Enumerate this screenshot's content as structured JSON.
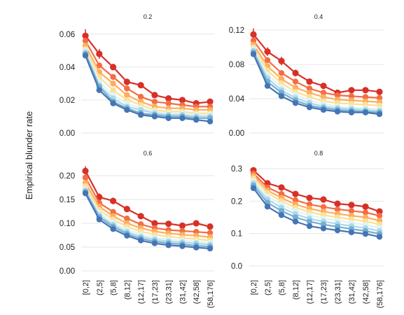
{
  "figure": {
    "ylabel": "Empirical blunder rate"
  },
  "chart_data": [
    {
      "type": "line",
      "title": "0.2",
      "xlabel": "",
      "ylabel": "Empirical blunder rate",
      "categories": [
        "[0,2]",
        "(2,5]",
        "(5,8]",
        "(8,12]",
        "(12,17]",
        "(17,23]",
        "(23,31]",
        "(31,42]",
        "(42,58]",
        "(58,176]"
      ],
      "ylim": [
        0,
        0.065
      ],
      "yticks": [
        0.0,
        0.02,
        0.04,
        0.06
      ],
      "ytick_labels": [
        "0.00",
        "0.02",
        "0.04",
        "0.06"
      ],
      "grid": true,
      "show_x_labels": false,
      "series": [
        {
          "color": "#d73027",
          "values": [
            0.059,
            0.048,
            0.04,
            0.031,
            0.029,
            0.023,
            0.021,
            0.02,
            0.018,
            0.019
          ],
          "errors": [
            0.004,
            0.003,
            0.002,
            0.002,
            0.001,
            0.001,
            0.001,
            0.001,
            0.001,
            0.001
          ]
        },
        {
          "color": "#f46d43",
          "values": [
            0.056,
            0.041,
            0.034,
            0.027,
            0.022,
            0.019,
            0.018,
            0.017,
            0.016,
            0.016
          ]
        },
        {
          "color": "#fdae61",
          "values": [
            0.053,
            0.037,
            0.03,
            0.023,
            0.019,
            0.016,
            0.015,
            0.015,
            0.014,
            0.014
          ]
        },
        {
          "color": "#fee090",
          "values": [
            0.051,
            0.034,
            0.026,
            0.02,
            0.017,
            0.014,
            0.013,
            0.013,
            0.012,
            0.012
          ]
        },
        {
          "color": "#e0f3f8",
          "values": [
            0.05,
            0.031,
            0.023,
            0.018,
            0.015,
            0.013,
            0.012,
            0.012,
            0.011,
            0.011
          ]
        },
        {
          "color": "#abd9e9",
          "values": [
            0.049,
            0.029,
            0.021,
            0.016,
            0.014,
            0.012,
            0.011,
            0.011,
            0.01,
            0.01
          ]
        },
        {
          "color": "#74add1",
          "values": [
            0.048,
            0.028,
            0.019,
            0.015,
            0.012,
            0.011,
            0.01,
            0.01,
            0.009,
            0.009
          ]
        },
        {
          "color": "#4575b4",
          "values": [
            0.047,
            0.026,
            0.018,
            0.014,
            0.011,
            0.01,
            0.009,
            0.009,
            0.008,
            0.007
          ]
        }
      ]
    },
    {
      "type": "line",
      "title": "0.4",
      "xlabel": "",
      "ylabel": "",
      "categories": [
        "[0,2]",
        "(2,5]",
        "(5,8]",
        "(8,12]",
        "(12,17]",
        "(17,23]",
        "(23,31]",
        "(31,42]",
        "(42,58]",
        "(58,176]"
      ],
      "ylim": [
        0,
        0.125
      ],
      "yticks": [
        0.0,
        0.04,
        0.08,
        0.12
      ],
      "ytick_labels": [
        "0.00",
        "0.04",
        "0.08",
        "0.12"
      ],
      "grid": true,
      "show_x_labels": false,
      "series": [
        {
          "color": "#d73027",
          "values": [
            0.115,
            0.095,
            0.084,
            0.07,
            0.06,
            0.055,
            0.047,
            0.05,
            0.05,
            0.048
          ],
          "errors": [
            0.007,
            0.005,
            0.005,
            0.004,
            0.003,
            0.003,
            0.003,
            0.002,
            0.002,
            0.002
          ]
        },
        {
          "color": "#f46d43",
          "values": [
            0.108,
            0.085,
            0.07,
            0.06,
            0.052,
            0.047,
            0.044,
            0.043,
            0.042,
            0.041
          ]
        },
        {
          "color": "#fdae61",
          "values": [
            0.103,
            0.078,
            0.063,
            0.053,
            0.047,
            0.042,
            0.039,
            0.038,
            0.037,
            0.036
          ]
        },
        {
          "color": "#fee090",
          "values": [
            0.1,
            0.073,
            0.058,
            0.048,
            0.042,
            0.037,
            0.035,
            0.034,
            0.033,
            0.032
          ]
        },
        {
          "color": "#e0f3f8",
          "values": [
            0.098,
            0.068,
            0.054,
            0.045,
            0.038,
            0.034,
            0.031,
            0.03,
            0.029,
            0.028
          ]
        },
        {
          "color": "#abd9e9",
          "values": [
            0.096,
            0.064,
            0.05,
            0.041,
            0.035,
            0.031,
            0.029,
            0.028,
            0.027,
            0.026
          ]
        },
        {
          "color": "#74add1",
          "values": [
            0.094,
            0.06,
            0.047,
            0.038,
            0.032,
            0.029,
            0.027,
            0.026,
            0.025,
            0.024
          ]
        },
        {
          "color": "#4575b4",
          "values": [
            0.092,
            0.055,
            0.043,
            0.035,
            0.03,
            0.027,
            0.025,
            0.024,
            0.024,
            0.022
          ]
        }
      ]
    },
    {
      "type": "line",
      "title": "0.6",
      "xlabel": "",
      "ylabel": "",
      "categories": [
        "[0,2]",
        "(2,5]",
        "(5,8]",
        "(8,12]",
        "(12,17]",
        "(17,23]",
        "(23,31]",
        "(31,42]",
        "(42,58]",
        "(58,176]"
      ],
      "ylim": [
        0,
        0.225
      ],
      "yticks": [
        0.0,
        0.05,
        0.1,
        0.15,
        0.2
      ],
      "ytick_labels": [
        "0.00",
        "0.05",
        "0.10",
        "0.15",
        "0.20"
      ],
      "grid": true,
      "show_x_labels": true,
      "series": [
        {
          "color": "#d73027",
          "values": [
            0.21,
            0.155,
            0.147,
            0.13,
            0.115,
            0.1,
            0.099,
            0.095,
            0.1,
            0.093
          ],
          "errors": [
            0.01,
            0.008,
            0.007,
            0.006,
            0.005,
            0.004,
            0.004,
            0.004,
            0.004,
            0.004
          ]
        },
        {
          "color": "#f46d43",
          "values": [
            0.196,
            0.143,
            0.124,
            0.11,
            0.098,
            0.09,
            0.086,
            0.084,
            0.082,
            0.08
          ]
        },
        {
          "color": "#fdae61",
          "values": [
            0.185,
            0.135,
            0.115,
            0.1,
            0.09,
            0.083,
            0.079,
            0.076,
            0.074,
            0.071
          ]
        },
        {
          "color": "#fee090",
          "values": [
            0.178,
            0.128,
            0.108,
            0.093,
            0.083,
            0.076,
            0.072,
            0.069,
            0.067,
            0.064
          ]
        },
        {
          "color": "#e0f3f8",
          "values": [
            0.172,
            0.122,
            0.102,
            0.087,
            0.077,
            0.07,
            0.066,
            0.064,
            0.062,
            0.059
          ]
        },
        {
          "color": "#abd9e9",
          "values": [
            0.169,
            0.117,
            0.097,
            0.082,
            0.072,
            0.066,
            0.062,
            0.06,
            0.058,
            0.055
          ]
        },
        {
          "color": "#74add1",
          "values": [
            0.166,
            0.113,
            0.093,
            0.078,
            0.068,
            0.062,
            0.058,
            0.056,
            0.053,
            0.051
          ]
        },
        {
          "color": "#4575b4",
          "values": [
            0.163,
            0.108,
            0.088,
            0.074,
            0.064,
            0.058,
            0.054,
            0.052,
            0.049,
            0.047
          ]
        }
      ]
    },
    {
      "type": "line",
      "title": "0.8",
      "xlabel": "",
      "ylabel": "",
      "categories": [
        "[0,2]",
        "(2,5]",
        "(5,8]",
        "(8,12]",
        "(12,17]",
        "(17,23]",
        "(23,31]",
        "(31,42]",
        "(42,58]",
        "(58,176]"
      ],
      "ylim": [
        -0.015,
        0.315
      ],
      "yticks": [
        0.0,
        0.1,
        0.2,
        0.3
      ],
      "ytick_labels": [
        "0.0",
        "0.1",
        "0.2",
        "0.3"
      ],
      "grid": true,
      "show_x_labels": true,
      "series": [
        {
          "color": "#d73027",
          "values": [
            0.295,
            0.255,
            0.242,
            0.222,
            0.21,
            0.205,
            0.192,
            0.188,
            0.183,
            0.168
          ],
          "errors": [
            0.006,
            0.005,
            0.005,
            0.004,
            0.004,
            0.004,
            0.004,
            0.004,
            0.004,
            0.004
          ]
        },
        {
          "color": "#f46d43",
          "values": [
            0.285,
            0.242,
            0.222,
            0.203,
            0.19,
            0.182,
            0.175,
            0.17,
            0.165,
            0.155
          ]
        },
        {
          "color": "#fdae61",
          "values": [
            0.278,
            0.233,
            0.21,
            0.19,
            0.177,
            0.168,
            0.161,
            0.155,
            0.15,
            0.14
          ]
        },
        {
          "color": "#fee090",
          "values": [
            0.27,
            0.225,
            0.2,
            0.18,
            0.166,
            0.157,
            0.15,
            0.144,
            0.138,
            0.128
          ]
        },
        {
          "color": "#e0f3f8",
          "values": [
            0.262,
            0.215,
            0.19,
            0.17,
            0.156,
            0.147,
            0.14,
            0.133,
            0.127,
            0.118
          ]
        },
        {
          "color": "#abd9e9",
          "values": [
            0.255,
            0.205,
            0.18,
            0.16,
            0.146,
            0.137,
            0.13,
            0.123,
            0.117,
            0.108
          ]
        },
        {
          "color": "#74add1",
          "values": [
            0.248,
            0.195,
            0.17,
            0.15,
            0.137,
            0.128,
            0.121,
            0.114,
            0.108,
            0.099
          ]
        },
        {
          "color": "#4575b4",
          "values": [
            0.24,
            0.183,
            0.157,
            0.137,
            0.123,
            0.116,
            0.11,
            0.104,
            0.099,
            0.09
          ]
        }
      ]
    }
  ]
}
